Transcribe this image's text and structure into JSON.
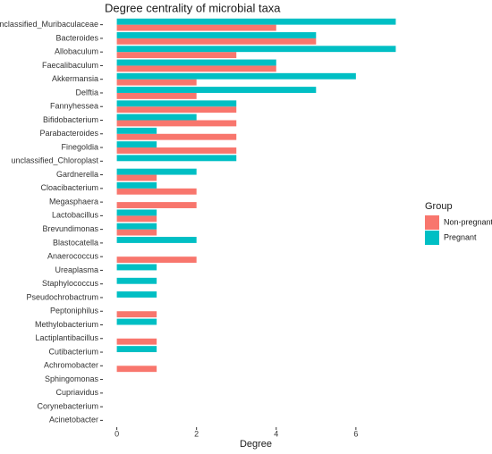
{
  "chart_data": {
    "type": "hbar",
    "title": "Degree centrality of microbial taxa",
    "x_label": "Degree",
    "legend_title": "Group",
    "categories": [
      "unclassified_Muribaculaceae",
      "Bacteroides",
      "Allobaculum",
      "Faecalibaculum",
      "Akkermansia",
      "Delftia",
      "Fannyhessea",
      "Bifidobacterium",
      "Parabacteroides",
      "Finegoldia",
      "unclassified_Chloroplast",
      "Gardnerella",
      "Cloacibacterium",
      "Megasphaera",
      "Lactobacillus",
      "Brevundimonas",
      "Blastocatella",
      "Anaerococcus",
      "Ureaplasma",
      "Staphylococcus",
      "Pseudochrobactrum",
      "Peptoniphilus",
      "Methylobacterium",
      "Lactiplantibacillus",
      "Cutibacterium",
      "Achromobacter",
      "Sphingomonas",
      "Cupriavidus",
      "Corynebacterium",
      "Acinetobacter"
    ],
    "series": [
      {
        "name": "Non-pregnant",
        "color": "#f8766d",
        "values": [
          4,
          5,
          3,
          4,
          2,
          2,
          3,
          3,
          3,
          3,
          0,
          1,
          2,
          2,
          1,
          1,
          0,
          2,
          0,
          0,
          0,
          1,
          0,
          1,
          0,
          1,
          0,
          0,
          0,
          0
        ]
      },
      {
        "name": "Pregnant",
        "color": "#00bfc4",
        "values": [
          7,
          5,
          7,
          4,
          6,
          5,
          3,
          2,
          1,
          1,
          3,
          2,
          1,
          0,
          1,
          1,
          2,
          0,
          1,
          1,
          1,
          0,
          1,
          0,
          1,
          0,
          0,
          0,
          0,
          0
        ]
      }
    ],
    "xlim": [
      -0.35,
      7.35
    ],
    "xticks": [
      0,
      2,
      4,
      6
    ],
    "grid": false,
    "legend_position": "right"
  }
}
